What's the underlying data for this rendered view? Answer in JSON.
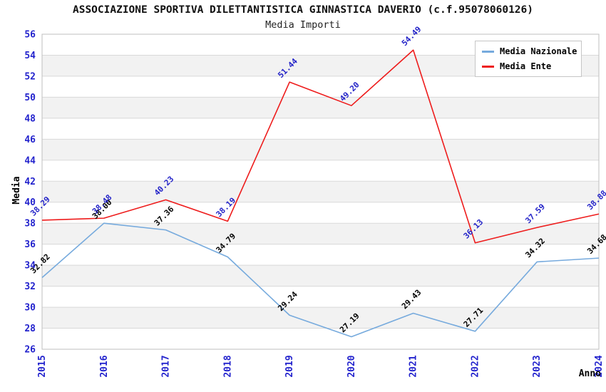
{
  "header": {
    "title": "ASSOCIAZIONE SPORTIVA DILETTANTISTICA GINNASTICA DAVERIO (c.f.95078060126)",
    "subtitle": "Media Importi"
  },
  "chart_data": {
    "type": "line",
    "title": "ASSOCIAZIONE SPORTIVA DILETTANTISTICA GINNASTICA DAVERIO (c.f.95078060126)",
    "subtitle": "Media Importi",
    "categories": [
      "2015",
      "2016",
      "2017",
      "2018",
      "2019",
      "2020",
      "2021",
      "2022",
      "2023",
      "2024"
    ],
    "series": [
      {
        "name": "Media Nazionale",
        "color": "#76aadd",
        "label_color": "#000000",
        "values": [
          32.82,
          38.0,
          37.36,
          34.79,
          29.24,
          27.19,
          29.43,
          27.71,
          34.32,
          34.68
        ],
        "labels": [
          "32.82",
          "38.00",
          "37.36",
          "34.79",
          "29.24",
          "27.19",
          "29.43",
          "27.71",
          "34.32",
          "34.68"
        ]
      },
      {
        "name": "Media Ente",
        "color": "#ee1c1c",
        "label_color": "#2323c8",
        "values": [
          38.29,
          38.48,
          40.23,
          38.19,
          51.44,
          49.2,
          54.49,
          36.13,
          37.59,
          38.88
        ],
        "labels": [
          "38.29",
          "38.48",
          "40.23",
          "38.19",
          "51.44",
          "49.20",
          "54.49",
          "36.13",
          "37.59",
          "38.88"
        ]
      }
    ],
    "xlabel": "Anno",
    "ylabel": "Media",
    "ylim": [
      26,
      56
    ],
    "ytick_step": 2,
    "grid": "horizontal",
    "legend_position": "top-right",
    "colors": {
      "tick_label": "#2323cd",
      "band_gray": "#f2f2f2",
      "band_white": "#ffffff",
      "grid_line": "#d9d9d9",
      "plot_border": "#bfbfbf",
      "axis_title": "#000000"
    }
  }
}
